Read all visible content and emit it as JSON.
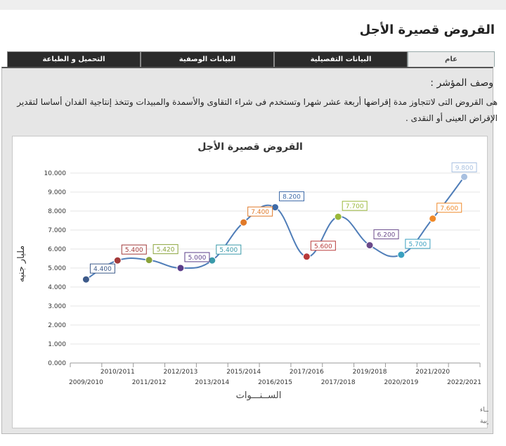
{
  "page": {
    "title": "القروض قصيرة الأجل",
    "tabs": [
      {
        "label": "عام",
        "active": true
      },
      {
        "label": "البيانات التفصيلية",
        "active": false
      },
      {
        "label": "البيانات الوصفية",
        "active": false
      },
      {
        "label": "التحميل و الطباعة",
        "active": false
      }
    ],
    "description_label": "وصف المؤشر :",
    "description_text": "هى القروض التى لاتتجاوز مدة إقراضها أربعة عشر شهرا وتستخدم فى شراء التقاوى والأسمدة والمبيدات وتتخذ إنتاجية الفدان أساسا لتقدير الإقراض العينى أو النقدى ."
  },
  "chart_data": {
    "type": "line",
    "title": "القروض قصيرة الأجل",
    "xlabel": "الســنـــوات",
    "ylabel": "مليار جنيه",
    "ylim": [
      0,
      10
    ],
    "yticks": [
      "0.000",
      "1.000",
      "2.000",
      "3.000",
      "4.000",
      "5.000",
      "6.000",
      "7.000",
      "8.000",
      "9.000",
      "10.000"
    ],
    "categories": [
      "2009/2010",
      "2010/2011",
      "2011/2012",
      "2012/2013",
      "2013/2014",
      "2015/2014",
      "2016/2015",
      "2017/2016",
      "2017/2018",
      "2019/2018",
      "2020/2019",
      "2021/2020",
      "2022/2021"
    ],
    "values": [
      4.4,
      5.4,
      5.42,
      5.0,
      5.4,
      7.4,
      8.2,
      5.6,
      7.7,
      6.2,
      5.7,
      7.6,
      9.8
    ],
    "data_labels": [
      "4.400",
      "5.400",
      "5.420",
      "5.000",
      "5.400",
      "7.400",
      "8.200",
      "5.600",
      "7.700",
      "6.200",
      "5.700",
      "7.600",
      "9.800"
    ],
    "point_colors": [
      "#3d5a8a",
      "#a33a3a",
      "#8aa33a",
      "#5a3d8a",
      "#3a9aaa",
      "#e07a2a",
      "#3d6aa8",
      "#b83a3a",
      "#9ab83a",
      "#6a4a8a",
      "#3aa0c0",
      "#f08a2a",
      "#a8c0e0"
    ],
    "line_color": "#4f7db8",
    "grid": true,
    "credits": [
      "حقوق الملكية للجهــاز المركزي للتعبئة العــامة والأحصــــاء",
      "المصدر الأساسـي للأحصاءات الرسمية لجمهورية مصر العربية"
    ]
  }
}
